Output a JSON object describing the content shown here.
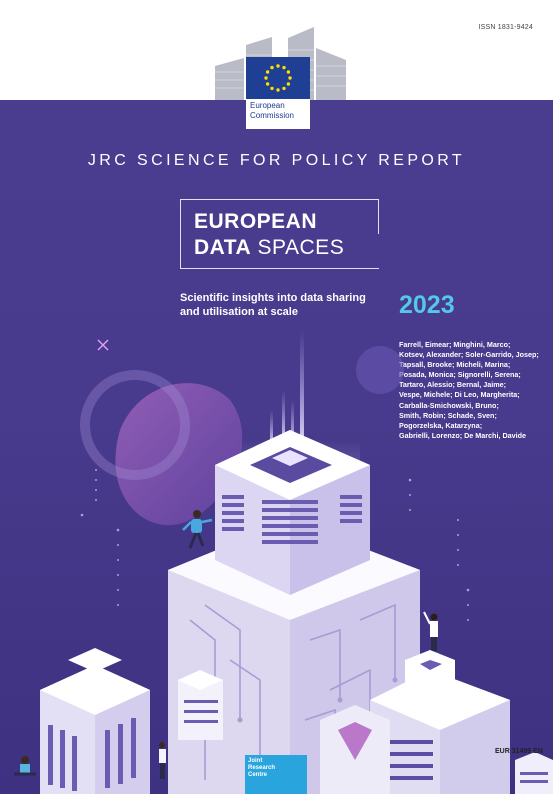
{
  "header": {
    "issn": "ISSN 1831-9424",
    "publisher": "European\nCommission"
  },
  "report_type": "JRC SCIENCE FOR POLICY REPORT",
  "title": {
    "line1": "EUROPEAN",
    "line2_bold": "DATA",
    "line2_rest": " SPACES"
  },
  "subtitle": "Scientific insights into data sharing and utilisation at scale",
  "year": "2023",
  "authors": [
    "Farrell, Eimear; Minghini, Marco;",
    "Kotsev, Alexander; Soler-Garrido, Josep;",
    "Tapsall, Brooke; Micheli, Marina;",
    "Posada, Monica; Signorelli, Serena;",
    "Tartaro, Alessio; Bernal, Jaime;",
    "Vespe, Michele; Di Leo, Margherita;",
    "Carballa-Smichowski, Bruno;",
    "Smith, Robin; Schade, Sven;",
    "Pogorzelska, Katarzyna;",
    "Gabrielli, Lorenzo; De Marchi, Davide"
  ],
  "footer": {
    "jrc": "Joint\nResearch\nCentre",
    "eur": "EUR 31499 EN"
  },
  "colors": {
    "background": "#4a3c8e",
    "year": "#54c8e8",
    "jrc": "#2aa4dc"
  }
}
